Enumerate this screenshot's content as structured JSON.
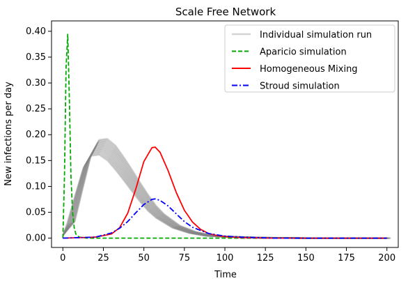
{
  "chart_data": {
    "type": "line",
    "title": "Scale Free Network",
    "xlabel": "Time",
    "ylabel": "New infections per day",
    "xlim": [
      -7,
      207
    ],
    "ylim": [
      -0.018,
      0.42
    ],
    "xticks": [
      0,
      25,
      50,
      75,
      100,
      125,
      150,
      175,
      200
    ],
    "yticks": [
      0.0,
      0.05,
      0.1,
      0.15,
      0.2,
      0.25,
      0.3,
      0.35,
      0.4
    ],
    "grid": false,
    "legend_position": "top-right",
    "series": [
      {
        "name": "Individual simulation run",
        "style": "solid",
        "color": "#d3d3d3",
        "x": [
          0,
          5,
          10,
          15,
          20,
          25,
          30,
          35,
          40,
          45,
          50,
          55,
          60,
          70,
          80,
          90,
          100,
          120,
          150,
          200
        ],
        "y": [
          0.005,
          0.03,
          0.09,
          0.148,
          0.175,
          0.177,
          0.165,
          0.145,
          0.123,
          0.1,
          0.078,
          0.058,
          0.043,
          0.022,
          0.011,
          0.005,
          0.003,
          0.001,
          0.0,
          0.0
        ]
      },
      {
        "name": "Aparicio simulation",
        "style": "dashed",
        "color": "#00aa00",
        "x": [
          0,
          1,
          2,
          3,
          4,
          5,
          6,
          7,
          8,
          10,
          15,
          200
        ],
        "y": [
          0.0,
          0.12,
          0.33,
          0.395,
          0.27,
          0.12,
          0.05,
          0.02,
          0.008,
          0.002,
          0.0,
          0.0
        ]
      },
      {
        "name": "Homogeneous Mixing",
        "style": "solid",
        "color": "#ff0000",
        "x": [
          0,
          20,
          30,
          35,
          40,
          45,
          50,
          55,
          57,
          60,
          65,
          70,
          75,
          80,
          85,
          90,
          95,
          100,
          110,
          130,
          150,
          200
        ],
        "y": [
          0.0,
          0.002,
          0.008,
          0.02,
          0.048,
          0.095,
          0.148,
          0.175,
          0.176,
          0.166,
          0.13,
          0.088,
          0.054,
          0.031,
          0.017,
          0.009,
          0.005,
          0.003,
          0.001,
          0.0,
          0.0,
          0.0
        ]
      },
      {
        "name": "Stroud simulation",
        "style": "dashdot",
        "color": "#0000ff",
        "x": [
          0,
          20,
          30,
          35,
          40,
          45,
          50,
          55,
          57,
          60,
          65,
          70,
          75,
          80,
          90,
          100,
          110,
          130,
          150,
          200
        ],
        "y": [
          0.0,
          0.002,
          0.01,
          0.019,
          0.032,
          0.049,
          0.065,
          0.075,
          0.076,
          0.073,
          0.062,
          0.047,
          0.032,
          0.021,
          0.009,
          0.004,
          0.002,
          0.0,
          0.0,
          0.0
        ]
      }
    ]
  }
}
